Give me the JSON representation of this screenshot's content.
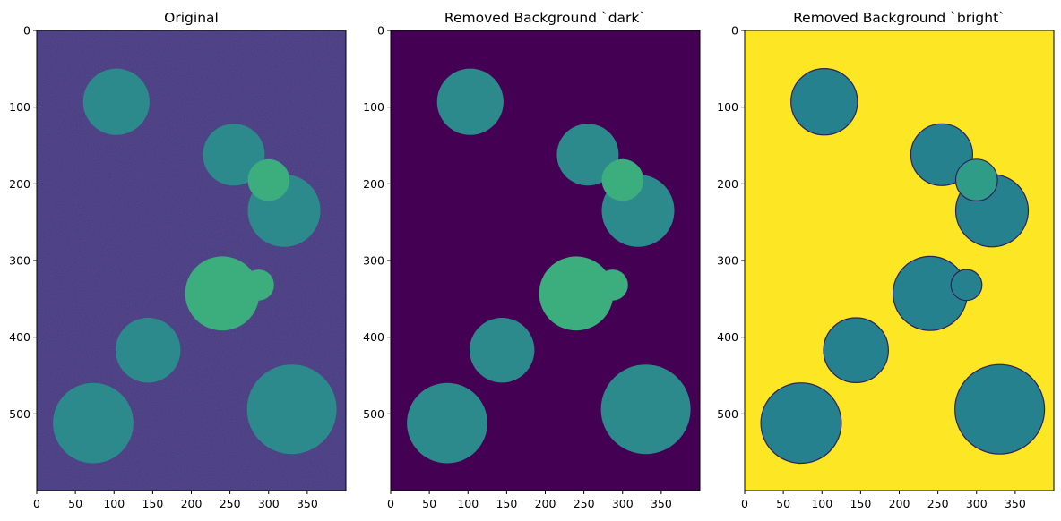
{
  "chart_data": [
    {
      "type": "heatmap",
      "title": "Original",
      "background": "noisy",
      "colors": {
        "background": "#462f7c",
        "disk": "#2d8a8c",
        "disk_bright": "#3cad7d"
      },
      "xlim": [
        0,
        400
      ],
      "ylim": [
        600,
        0
      ],
      "x_ticks": [
        0,
        50,
        100,
        150,
        200,
        250,
        300,
        350
      ],
      "y_ticks": [
        0,
        100,
        200,
        300,
        400,
        500
      ],
      "disks": [
        {
          "cx": 103,
          "cy": 93,
          "r": 43,
          "tone": "disk"
        },
        {
          "cx": 255,
          "cy": 162,
          "r": 40,
          "tone": "disk"
        },
        {
          "cx": 320,
          "cy": 235,
          "r": 47,
          "tone": "disk"
        },
        {
          "cx": 300,
          "cy": 195,
          "r": 27,
          "tone": "disk_bright"
        },
        {
          "cx": 240,
          "cy": 343,
          "r": 48,
          "tone": "disk_bright"
        },
        {
          "cx": 287,
          "cy": 332,
          "r": 20,
          "tone": "disk_bright"
        },
        {
          "cx": 144,
          "cy": 417,
          "r": 42,
          "tone": "disk"
        },
        {
          "cx": 73,
          "cy": 512,
          "r": 52,
          "tone": "disk"
        },
        {
          "cx": 330,
          "cy": 494,
          "r": 58,
          "tone": "disk"
        }
      ]
    },
    {
      "type": "heatmap",
      "title": "Removed Background `dark`",
      "background": "flat",
      "colors": {
        "background": "#440154",
        "disk": "#2d8a8c",
        "disk_bright": "#3cad7d"
      },
      "xlim": [
        0,
        400
      ],
      "ylim": [
        600,
        0
      ],
      "x_ticks": [
        0,
        50,
        100,
        150,
        200,
        250,
        300,
        350
      ],
      "y_ticks": [
        0,
        100,
        200,
        300,
        400,
        500
      ],
      "disks": [
        {
          "cx": 103,
          "cy": 93,
          "r": 43,
          "tone": "disk"
        },
        {
          "cx": 255,
          "cy": 162,
          "r": 40,
          "tone": "disk"
        },
        {
          "cx": 320,
          "cy": 235,
          "r": 47,
          "tone": "disk"
        },
        {
          "cx": 300,
          "cy": 195,
          "r": 27,
          "tone": "disk_bright"
        },
        {
          "cx": 240,
          "cy": 343,
          "r": 48,
          "tone": "disk_bright"
        },
        {
          "cx": 287,
          "cy": 332,
          "r": 20,
          "tone": "disk_bright"
        },
        {
          "cx": 144,
          "cy": 417,
          "r": 42,
          "tone": "disk"
        },
        {
          "cx": 73,
          "cy": 512,
          "r": 52,
          "tone": "disk"
        },
        {
          "cx": 330,
          "cy": 494,
          "r": 58,
          "tone": "disk"
        }
      ]
    },
    {
      "type": "heatmap",
      "title": "Removed Background `bright`",
      "background": "flat",
      "colors": {
        "background": "#fde725",
        "disk": "#26818e",
        "disk_bright": "#2f9c88",
        "edge": "#30205a"
      },
      "xlim": [
        0,
        400
      ],
      "ylim": [
        600,
        0
      ],
      "x_ticks": [
        0,
        50,
        100,
        150,
        200,
        250,
        300,
        350
      ],
      "y_ticks": [
        0,
        100,
        200,
        300,
        400,
        500
      ],
      "disks": [
        {
          "cx": 103,
          "cy": 93,
          "r": 43,
          "tone": "disk"
        },
        {
          "cx": 255,
          "cy": 162,
          "r": 40,
          "tone": "disk"
        },
        {
          "cx": 320,
          "cy": 235,
          "r": 47,
          "tone": "disk"
        },
        {
          "cx": 300,
          "cy": 195,
          "r": 27,
          "tone": "disk_bright"
        },
        {
          "cx": 240,
          "cy": 343,
          "r": 48,
          "tone": "disk"
        },
        {
          "cx": 287,
          "cy": 332,
          "r": 20,
          "tone": "disk"
        },
        {
          "cx": 144,
          "cy": 417,
          "r": 42,
          "tone": "disk"
        },
        {
          "cx": 73,
          "cy": 512,
          "r": 52,
          "tone": "disk"
        },
        {
          "cx": 330,
          "cy": 494,
          "r": 58,
          "tone": "disk"
        }
      ]
    }
  ]
}
